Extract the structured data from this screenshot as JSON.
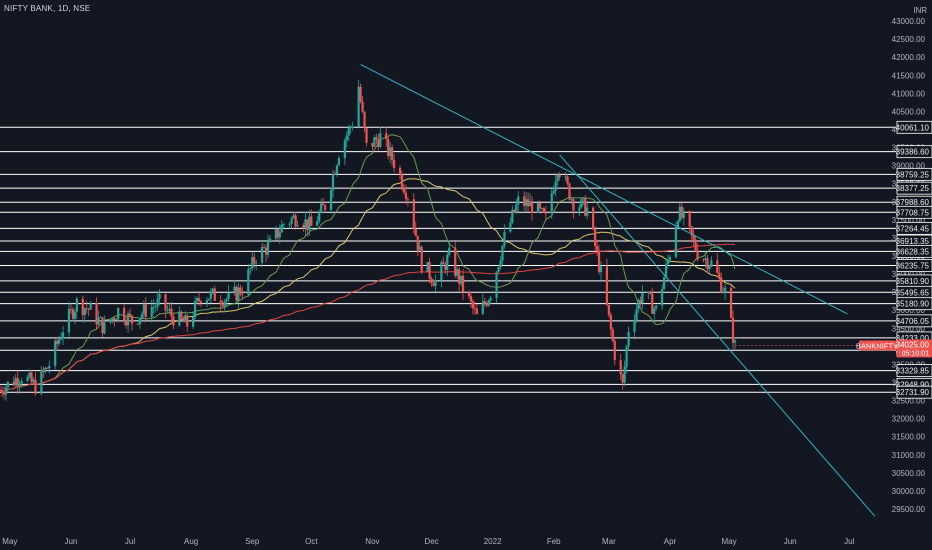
{
  "title": "NIFTY BANK, 1D, NSE",
  "currency": "INR",
  "colors": {
    "background": "#131722",
    "bull": "#26a69a",
    "bear": "#ef5350",
    "trendline": "#2fb5c0",
    "ma_fast": "#d9c56b",
    "ma_mid": "#6a9c4f",
    "ma_slow": "#e0443f",
    "level": "#ffffff"
  },
  "chart_data": {
    "type": "candlestick",
    "ylim": [
      29500,
      43500
    ],
    "x_ticks": [
      "May",
      "Jun",
      "Jul",
      "Aug",
      "Sep",
      "Oct",
      "Nov",
      "Dec",
      "2022",
      "Feb",
      "Mar",
      "Apr",
      "May",
      "Jun",
      "Jul"
    ],
    "y_ticks": [
      29500,
      30000,
      30500,
      31000,
      31500,
      32000,
      32500,
      33000,
      33500,
      34000,
      34500,
      35000,
      35500,
      36000,
      36500,
      37000,
      37500,
      38000,
      38500,
      39000,
      39500,
      40000,
      40500,
      41000,
      41500,
      42000,
      42500,
      43000
    ],
    "horizontal_levels": [
      40061.1,
      39386.6,
      38759.25,
      38377.25,
      37988.6,
      37708.75,
      37264.45,
      36913.35,
      36628.35,
      36235.75,
      35810.9,
      35495.65,
      35180.9,
      34706.05,
      34233.0,
      33893.6,
      33329.85,
      32948.9,
      32731.9
    ],
    "last_price": {
      "symbol": "BANKNIFTY",
      "value": "34025.00",
      "countdown": "05:10:01"
    },
    "close_path": [
      [
        "2021-04-26",
        32800
      ],
      [
        "2021-05-07",
        33200
      ],
      [
        "2021-05-14",
        32900
      ],
      [
        "2021-05-21",
        33500
      ],
      [
        "2021-05-28",
        34500
      ],
      [
        "2021-06-04",
        35200
      ],
      [
        "2021-06-11",
        35000
      ],
      [
        "2021-06-18",
        34500
      ],
      [
        "2021-06-25",
        35000
      ],
      [
        "2021-07-02",
        34700
      ],
      [
        "2021-07-09",
        35000
      ],
      [
        "2021-07-16",
        35200
      ],
      [
        "2021-07-23",
        34800
      ],
      [
        "2021-07-30",
        34600
      ],
      [
        "2021-08-06",
        35400
      ],
      [
        "2021-08-13",
        35400
      ],
      [
        "2021-08-20",
        35300
      ],
      [
        "2021-08-27",
        35600
      ],
      [
        "2021-09-03",
        36500
      ],
      [
        "2021-09-10",
        36800
      ],
      [
        "2021-09-17",
        37400
      ],
      [
        "2021-09-24",
        37600
      ],
      [
        "2021-10-01",
        37300
      ],
      [
        "2021-10-08",
        37900
      ],
      [
        "2021-10-15",
        39400
      ],
      [
        "2021-10-22",
        40200
      ],
      [
        "2021-10-25",
        41200
      ],
      [
        "2021-10-29",
        39500
      ],
      [
        "2021-11-05",
        39800
      ],
      [
        "2021-11-12",
        39100
      ],
      [
        "2021-11-19",
        38200
      ],
      [
        "2021-11-26",
        36300
      ],
      [
        "2021-12-03",
        35800
      ],
      [
        "2021-12-10",
        36500
      ],
      [
        "2021-12-17",
        35600
      ],
      [
        "2021-12-24",
        34800
      ],
      [
        "2021-12-31",
        35500
      ],
      [
        "2022-01-07",
        37000
      ],
      [
        "2022-01-14",
        38000
      ],
      [
        "2022-01-21",
        37900
      ],
      [
        "2022-01-28",
        37500
      ],
      [
        "2022-02-03",
        39000
      ],
      [
        "2022-02-11",
        38000
      ],
      [
        "2022-02-18",
        37800
      ],
      [
        "2022-02-25",
        36000
      ],
      [
        "2022-03-04",
        33800
      ],
      [
        "2022-03-08",
        32900
      ],
      [
        "2022-03-11",
        34500
      ],
      [
        "2022-03-18",
        35500
      ],
      [
        "2022-03-25",
        35000
      ],
      [
        "2022-04-01",
        36600
      ],
      [
        "2022-04-05",
        37700
      ],
      [
        "2022-04-08",
        37500
      ],
      [
        "2022-04-15",
        36600
      ],
      [
        "2022-04-22",
        36300
      ],
      [
        "2022-04-29",
        35500
      ],
      [
        "2022-05-04",
        34000
      ]
    ],
    "trendlines": [
      {
        "from": [
          "2021-10-26",
          41800
        ],
        "to": [
          "2022-06-30",
          34900
        ]
      },
      {
        "from": [
          "2022-02-04",
          39300
        ],
        "to": [
          "2022-07-14",
          29300
        ]
      }
    ],
    "moving_averages": [
      {
        "key": "ma_fast",
        "period": 50
      },
      {
        "key": "ma_mid",
        "period": 20
      },
      {
        "key": "ma_slow",
        "period": 200
      }
    ]
  }
}
